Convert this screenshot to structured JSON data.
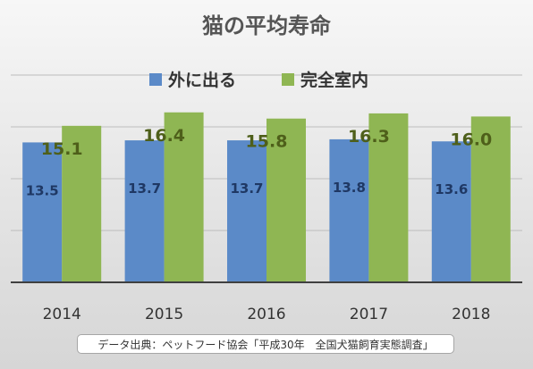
{
  "chart_data": {
    "type": "bar",
    "title": "猫の平均寿命",
    "categories": [
      "2014",
      "2015",
      "2016",
      "2017",
      "2018"
    ],
    "series": [
      {
        "name": "外に出る",
        "values": [
          13.5,
          13.7,
          13.7,
          13.8,
          13.6
        ],
        "labels": [
          "13.5",
          "13.7",
          "13.7",
          "13.8",
          "13.6"
        ],
        "color": "#5b8ac8"
      },
      {
        "name": "完全室内",
        "values": [
          15.1,
          16.4,
          15.8,
          16.3,
          16.0
        ],
        "labels": [
          "15.1",
          "16.4",
          "15.8",
          "16.3",
          "16.0"
        ],
        "color": "#8fb653"
      }
    ],
    "ylim": [
      0,
      20
    ],
    "grid": true,
    "legend": "top"
  },
  "source": "データ出典：ペットフード協会「平成30年　全国犬猫飼育実態調査」"
}
